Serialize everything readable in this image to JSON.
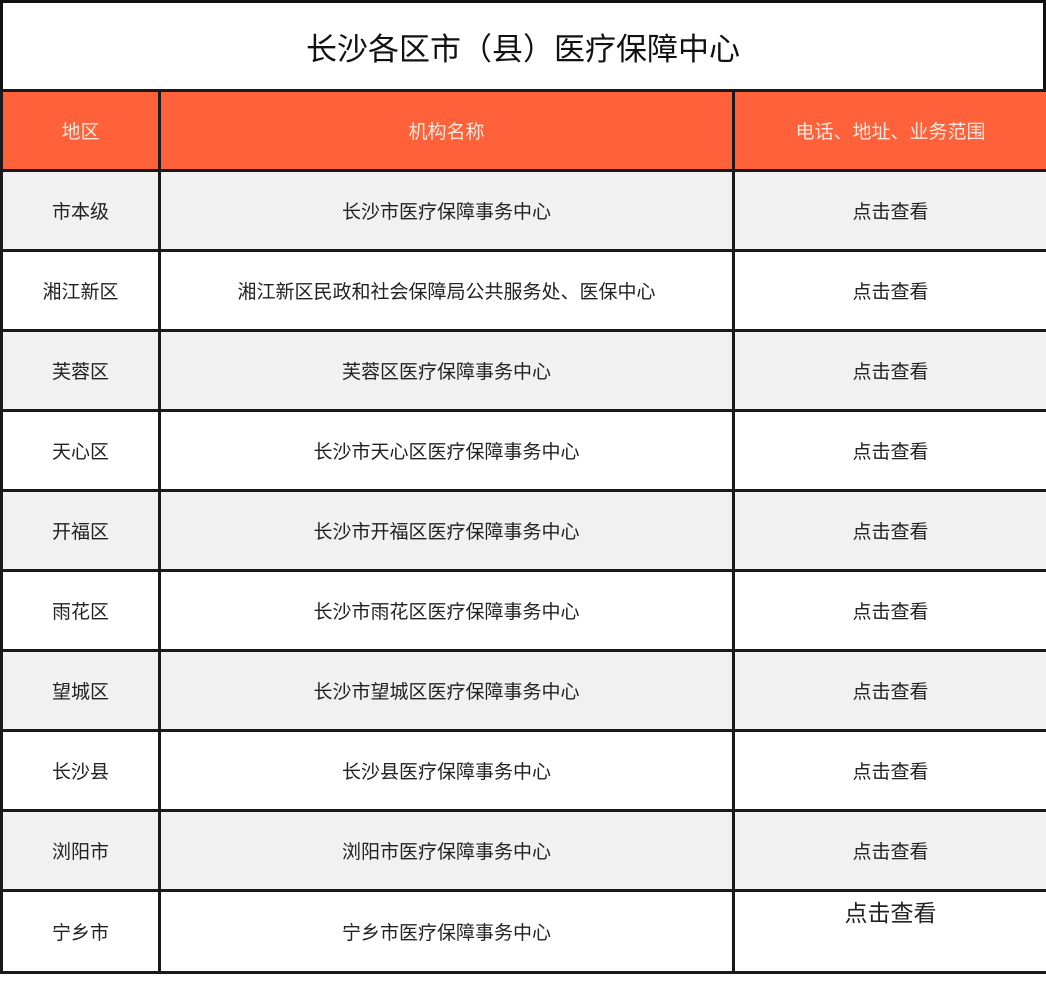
{
  "title": "长沙各区市（县）医疗保障中心",
  "header_color": "#ff623a",
  "columns": [
    "地区",
    "机构名称",
    "电话、地址、业务范围"
  ],
  "rows": [
    {
      "region": "市本级",
      "org": "长沙市医疗保障事务中心",
      "link": "点击查看"
    },
    {
      "region": "湘江新区",
      "org": "湘江新区民政和社会保障局公共服务处、医保中心",
      "link": "点击查看"
    },
    {
      "region": "芙蓉区",
      "org": "芙蓉区医疗保障事务中心",
      "link": "点击查看"
    },
    {
      "region": "天心区",
      "org": "长沙市天心区医疗保障事务中心",
      "link": "点击查看"
    },
    {
      "region": "开福区",
      "org": "长沙市开福区医疗保障事务中心",
      "link": "点击查看"
    },
    {
      "region": "雨花区",
      "org": "长沙市雨花区医疗保障事务中心",
      "link": "点击查看"
    },
    {
      "region": "望城区",
      "org": "长沙市望城区医疗保障事务中心",
      "link": "点击查看"
    },
    {
      "region": "长沙县",
      "org": "长沙县医疗保障事务中心",
      "link": "点击查看"
    },
    {
      "region": "浏阳市",
      "org": "浏阳市医疗保障事务中心",
      "link": "点击查看"
    },
    {
      "region": "宁乡市",
      "org": "宁乡市医疗保障事务中心",
      "link": "点击查看"
    }
  ]
}
